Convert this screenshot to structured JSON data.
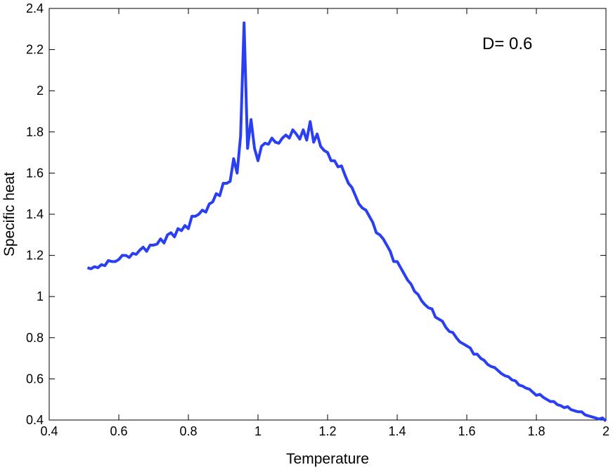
{
  "chart_data": {
    "type": "line",
    "x_label": "Temperature",
    "y_label": "Specific heat",
    "annotation": "D= 0.6",
    "xlim": [
      0.4,
      2
    ],
    "ylim": [
      0.4,
      2.4
    ],
    "xticks": [
      0.4,
      0.6,
      0.8,
      1,
      1.2,
      1.4,
      1.6,
      1.8,
      2
    ],
    "yticks": [
      0.4,
      0.6,
      0.8,
      1,
      1.2,
      1.4,
      1.6,
      1.8,
      2,
      2.2,
      2.4
    ],
    "x": [
      0.51,
      0.52,
      0.53,
      0.54,
      0.55,
      0.56,
      0.57,
      0.58,
      0.59,
      0.6,
      0.61,
      0.62,
      0.63,
      0.64,
      0.65,
      0.66,
      0.67,
      0.68,
      0.69,
      0.7,
      0.71,
      0.72,
      0.73,
      0.74,
      0.75,
      0.76,
      0.77,
      0.78,
      0.79,
      0.8,
      0.81,
      0.82,
      0.83,
      0.84,
      0.85,
      0.86,
      0.87,
      0.88,
      0.89,
      0.9,
      0.91,
      0.92,
      0.93,
      0.94,
      0.95,
      0.96,
      0.97,
      0.98,
      0.99,
      1.0,
      1.01,
      1.02,
      1.03,
      1.04,
      1.05,
      1.06,
      1.07,
      1.08,
      1.09,
      1.1,
      1.11,
      1.12,
      1.13,
      1.14,
      1.15,
      1.16,
      1.17,
      1.18,
      1.19,
      1.2,
      1.21,
      1.22,
      1.23,
      1.24,
      1.25,
      1.26,
      1.27,
      1.28,
      1.29,
      1.3,
      1.31,
      1.32,
      1.33,
      1.34,
      1.35,
      1.36,
      1.37,
      1.38,
      1.39,
      1.4,
      1.41,
      1.42,
      1.43,
      1.44,
      1.45,
      1.46,
      1.47,
      1.48,
      1.49,
      1.5,
      1.51,
      1.52,
      1.53,
      1.54,
      1.55,
      1.56,
      1.57,
      1.58,
      1.59,
      1.6,
      1.61,
      1.62,
      1.63,
      1.64,
      1.65,
      1.66,
      1.67,
      1.68,
      1.69,
      1.7,
      1.71,
      1.72,
      1.73,
      1.74,
      1.75,
      1.76,
      1.77,
      1.78,
      1.79,
      1.8,
      1.81,
      1.82,
      1.83,
      1.84,
      1.85,
      1.86,
      1.87,
      1.88,
      1.89,
      1.9,
      1.91,
      1.92,
      1.93,
      1.94,
      1.95,
      1.96,
      1.97,
      1.98,
      1.99,
      2.0
    ],
    "series": [
      {
        "color": "#2b3ff2",
        "values": [
          1.14,
          1.135,
          1.145,
          1.14,
          1.155,
          1.15,
          1.175,
          1.17,
          1.17,
          1.18,
          1.2,
          1.2,
          1.19,
          1.21,
          1.205,
          1.225,
          1.24,
          1.22,
          1.25,
          1.25,
          1.255,
          1.28,
          1.26,
          1.3,
          1.31,
          1.29,
          1.33,
          1.32,
          1.345,
          1.33,
          1.39,
          1.39,
          1.4,
          1.42,
          1.41,
          1.45,
          1.46,
          1.5,
          1.49,
          1.55,
          1.55,
          1.56,
          1.67,
          1.6,
          1.78,
          2.33,
          1.72,
          1.86,
          1.72,
          1.66,
          1.73,
          1.745,
          1.74,
          1.77,
          1.75,
          1.745,
          1.77,
          1.785,
          1.77,
          1.81,
          1.79,
          1.765,
          1.81,
          1.76,
          1.85,
          1.75,
          1.79,
          1.73,
          1.71,
          1.7,
          1.66,
          1.66,
          1.63,
          1.635,
          1.59,
          1.55,
          1.53,
          1.49,
          1.45,
          1.43,
          1.42,
          1.39,
          1.36,
          1.31,
          1.3,
          1.28,
          1.25,
          1.22,
          1.17,
          1.17,
          1.14,
          1.11,
          1.08,
          1.06,
          1.025,
          1.01,
          0.98,
          0.96,
          0.945,
          0.94,
          0.9,
          0.89,
          0.88,
          0.85,
          0.83,
          0.825,
          0.8,
          0.78,
          0.77,
          0.76,
          0.75,
          0.72,
          0.72,
          0.7,
          0.69,
          0.67,
          0.66,
          0.655,
          0.64,
          0.625,
          0.615,
          0.61,
          0.595,
          0.59,
          0.57,
          0.565,
          0.555,
          0.55,
          0.535,
          0.52,
          0.525,
          0.51,
          0.5,
          0.49,
          0.49,
          0.475,
          0.47,
          0.46,
          0.465,
          0.45,
          0.445,
          0.44,
          0.44,
          0.425,
          0.42,
          0.415,
          0.41,
          0.405,
          0.41,
          0.395
        ]
      }
    ]
  }
}
